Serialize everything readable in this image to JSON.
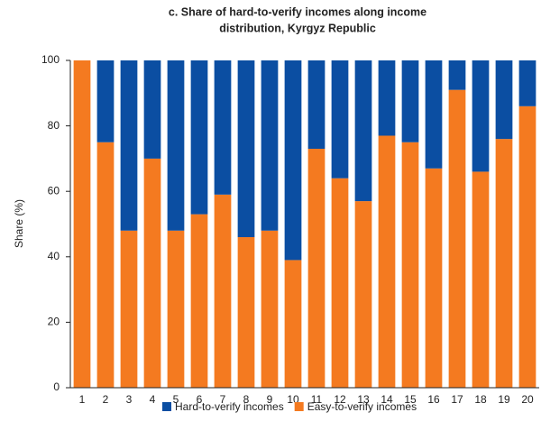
{
  "chart_data": {
    "type": "stacked_bar",
    "title": [
      "c. Share of hard-to-verify incomes along income",
      "distribution, Kyrgyz Republic"
    ],
    "ylabel": "Share (%)",
    "categories": [
      "1",
      "2",
      "3",
      "4",
      "5",
      "6",
      "7",
      "8",
      "9",
      "10",
      "11",
      "12",
      "13",
      "14",
      "15",
      "16",
      "17",
      "18",
      "19",
      "20"
    ],
    "series": [
      {
        "name": "Hard-to-verify incomes",
        "color": "#0b4ea2",
        "values": [
          0,
          25,
          52,
          30,
          52,
          47,
          41,
          54,
          52,
          61,
          27,
          36,
          43,
          23,
          25,
          33,
          9,
          34,
          24,
          14
        ]
      },
      {
        "name": "Easy-to-verify incomes",
        "color": "#f47a20",
        "values": [
          100,
          75,
          48,
          70,
          48,
          53,
          59,
          46,
          48,
          39,
          73,
          64,
          57,
          77,
          75,
          67,
          91,
          66,
          76,
          86
        ]
      }
    ],
    "ylim": [
      0,
      100
    ],
    "yticks": [
      0,
      20,
      40,
      60,
      80,
      100
    ],
    "grid": false,
    "legend": "bottom"
  }
}
